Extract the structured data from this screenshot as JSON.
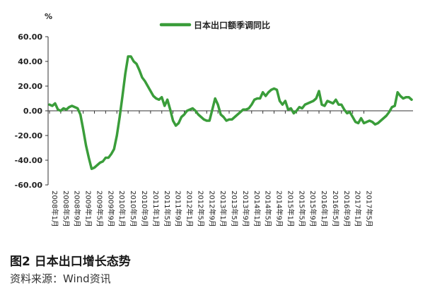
{
  "figure": {
    "caption": "图2 日本出口增长态势",
    "source": "资料来源：Wind资讯"
  },
  "chart_data": {
    "type": "line",
    "title": "",
    "ylabel": "%",
    "xlabel": "",
    "ylim": [
      -60,
      60
    ],
    "y_ticks": [
      "60.00",
      "40.00",
      "20.00",
      "0.00",
      "-20.00",
      "-40.00",
      "-60.00"
    ],
    "y_tick_values": [
      60,
      40,
      20,
      0,
      -20,
      -40,
      -60
    ],
    "grid": false,
    "legend_position": "top-center",
    "line_color": "#3a9d3a",
    "x_tick_labels": [
      "2008年1月",
      "2008年5月",
      "2008年9月",
      "2009年1月",
      "2009年5月",
      "2009年9月",
      "2010年1月",
      "2010年5月",
      "2010年9月",
      "2011年1月",
      "2011年5月",
      "2011年9月",
      "2012年1月",
      "2012年5月",
      "2012年9月",
      "2013年1月",
      "2013年5月",
      "2013年9月",
      "2014年1月",
      "2014年5月",
      "2014年9月",
      "2015年1月",
      "2015年5月",
      "2015年9月",
      "2016年1月",
      "2016年5月",
      "2016年9月",
      "2017年1月",
      "2017年5月"
    ],
    "x_start": "2008-01",
    "series": [
      {
        "name": "日本出口额季调同比",
        "values": [
          5,
          4,
          6,
          1,
          0,
          2,
          1,
          3,
          4,
          3,
          2,
          -3,
          -15,
          -28,
          -38,
          -47,
          -46,
          -44,
          -42,
          -41,
          -38,
          -38,
          -35,
          -31,
          -20,
          -5,
          12,
          30,
          44,
          44,
          40,
          38,
          33,
          27,
          24,
          20,
          16,
          12,
          10,
          9,
          11,
          4,
          9,
          1,
          -8,
          -12,
          -10,
          -5,
          -3,
          0,
          1,
          2,
          0,
          -3,
          -5,
          -7,
          -8,
          -8,
          1,
          10,
          5,
          -3,
          -5,
          -8,
          -7,
          -7,
          -5,
          -3,
          -1,
          1,
          1,
          2,
          5,
          9,
          10,
          10,
          15,
          12,
          15,
          17,
          18,
          17,
          8,
          5,
          8,
          1,
          2,
          -2,
          0,
          3,
          2,
          5,
          6,
          7,
          8,
          10,
          16,
          5,
          4,
          8,
          7,
          6,
          9,
          5,
          5,
          1,
          -2,
          -1,
          -5,
          -9,
          -10,
          -6,
          -10,
          -9,
          -8,
          -9,
          -11,
          -10,
          -8,
          -6,
          -4,
          -1,
          3,
          4,
          15,
          12,
          10,
          11,
          11,
          9
        ]
      }
    ]
  }
}
